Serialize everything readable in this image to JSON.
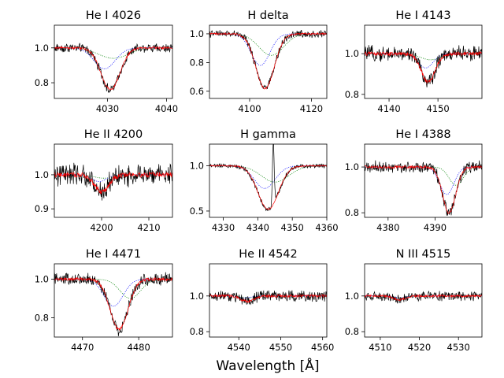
{
  "figure": {
    "xlabel": "Wavelength [Å]",
    "colors": {
      "observed": "#000000",
      "model": "#ff0000",
      "comp1": "#0000ff",
      "comp2": "#008000"
    }
  },
  "chart_data": [
    {
      "type": "line",
      "title": "He I 4026",
      "xlim": [
        4021,
        4041
      ],
      "ylim": [
        0.71,
        1.13
      ],
      "xticks": [
        4030,
        4040
      ],
      "xtick_labels": [
        "4030",
        "4040"
      ],
      "yticks": [
        0.8,
        1.0
      ],
      "ytick_labels": [
        "0.8",
        "1.0"
      ],
      "center": 4030.5,
      "width": 1.6,
      "depth": 0.24,
      "comp1": {
        "center": 4029.5,
        "depth": 0.12,
        "width": 1.8
      },
      "comp2": {
        "center": 4031,
        "depth": 0.06,
        "width": 2.5
      },
      "noise": 0.02
    },
    {
      "type": "line",
      "title": "H delta",
      "xlim": [
        4087,
        4125
      ],
      "ylim": [
        0.55,
        1.06
      ],
      "xticks": [
        4100,
        4120
      ],
      "xtick_labels": [
        "4100",
        "4120"
      ],
      "yticks": [
        0.6,
        0.8,
        1.0
      ],
      "ytick_labels": [
        "0.6",
        "0.8",
        "1.0"
      ],
      "center": 4105,
      "width": 3.0,
      "depth": 0.38,
      "comp1": {
        "center": 4103.5,
        "depth": 0.22,
        "width": 3.0
      },
      "comp2": {
        "center": 4107,
        "depth": 0.15,
        "width": 4.0
      },
      "noise": 0.02
    },
    {
      "type": "line",
      "title": "He I 4143",
      "xlim": [
        4135,
        4159
      ],
      "ylim": [
        0.78,
        1.14
      ],
      "xticks": [
        4140,
        4150
      ],
      "xtick_labels": [
        "4140",
        "4150"
      ],
      "yticks": [
        0.8,
        1.0
      ],
      "ytick_labels": [
        "0.8",
        "1.0"
      ],
      "center": 4148,
      "width": 1.4,
      "depth": 0.14,
      "comp1": {
        "center": 4147.5,
        "depth": 0.07,
        "width": 1.5
      },
      "comp2": {
        "center": 4148.5,
        "depth": 0.03,
        "width": 2.0
      },
      "noise": 0.03
    },
    {
      "type": "line",
      "title": "He II 4200",
      "xlim": [
        4190,
        4215
      ],
      "ylim": [
        0.875,
        1.09
      ],
      "xticks": [
        4200,
        4210
      ],
      "xtick_labels": [
        "4200",
        "4210"
      ],
      "yticks": [
        0.9,
        1.0
      ],
      "ytick_labels": [
        "0.9",
        "1.0"
      ],
      "center": 4200,
      "width": 1.5,
      "depth": 0.05,
      "comp1": {
        "center": 4199.5,
        "depth": 0.02,
        "width": 1.5
      },
      "comp2": {
        "center": 4200.5,
        "depth": 0.01,
        "width": 2.0
      },
      "noise": 0.025
    },
    {
      "type": "line",
      "title": "H gamma",
      "xlim": [
        4326,
        4360
      ],
      "ylim": [
        0.43,
        1.24
      ],
      "xticks": [
        4330,
        4340,
        4350,
        4360
      ],
      "xtick_labels": [
        "4330",
        "4340",
        "4350",
        "4360"
      ],
      "yticks": [
        0.5,
        1.0
      ],
      "ytick_labels": [
        "0.5",
        "1.0"
      ],
      "center": 4343,
      "width": 3.0,
      "depth": 0.48,
      "comp1": {
        "center": 4342,
        "depth": 0.25,
        "width": 3.0
      },
      "comp2": {
        "center": 4345,
        "depth": 0.18,
        "width": 4.0
      },
      "emission": {
        "center": 4344.5,
        "height": 0.7,
        "width": 0.25
      },
      "noise": 0.02
    },
    {
      "type": "line",
      "title": "He I 4388",
      "xlim": [
        4375,
        4400
      ],
      "ylim": [
        0.78,
        1.1
      ],
      "xticks": [
        4380,
        4390
      ],
      "xtick_labels": [
        "4380",
        "4390"
      ],
      "yticks": [
        0.8,
        1.0
      ],
      "ytick_labels": [
        "0.8",
        "1.0"
      ],
      "center": 4393,
      "width": 1.4,
      "depth": 0.2,
      "comp1": {
        "center": 4392.5,
        "depth": 0.12,
        "width": 1.5
      },
      "comp2": {
        "center": 4394.5,
        "depth": 0.08,
        "width": 1.5
      },
      "noise": 0.02
    },
    {
      "type": "line",
      "title": "He I 4471",
      "xlim": [
        4465,
        4486
      ],
      "ylim": [
        0.7,
        1.08
      ],
      "xticks": [
        4470,
        4480
      ],
      "xtick_labels": [
        "4470",
        "4480"
      ],
      "yticks": [
        0.8,
        1.0
      ],
      "ytick_labels": [
        "0.8",
        "1.0"
      ],
      "center": 4476.5,
      "width": 1.6,
      "depth": 0.26,
      "comp1": {
        "center": 4475.5,
        "depth": 0.14,
        "width": 1.7
      },
      "comp2": {
        "center": 4478.5,
        "depth": 0.1,
        "width": 1.8
      },
      "noise": 0.025
    },
    {
      "type": "line",
      "title": "He II 4542",
      "xlim": [
        4533,
        4561
      ],
      "ylim": [
        0.77,
        1.18
      ],
      "xticks": [
        4540,
        4550,
        4560
      ],
      "xtick_labels": [
        "4540",
        "4550",
        "4560"
      ],
      "yticks": [
        0.8,
        1.0
      ],
      "ytick_labels": [
        "0.8",
        "1.0"
      ],
      "center": 4542,
      "width": 1.5,
      "depth": 0.03,
      "comp1": {
        "center": 4541.5,
        "depth": 0.01,
        "width": 1.5
      },
      "comp2": {
        "center": 4542.5,
        "depth": 0.01,
        "width": 1.5
      },
      "noise": 0.025
    },
    {
      "type": "line",
      "title": "N III 4515",
      "xlim": [
        4506,
        4536
      ],
      "ylim": [
        0.77,
        1.18
      ],
      "xticks": [
        4510,
        4520,
        4530
      ],
      "xtick_labels": [
        "4510",
        "4520",
        "4530"
      ],
      "yticks": [
        0.8,
        1.0
      ],
      "ytick_labels": [
        "0.8",
        "1.0"
      ],
      "center": 4515,
      "width": 1.5,
      "depth": 0.02,
      "comp1": {
        "center": 4515,
        "depth": 0.01,
        "width": 1.5
      },
      "comp2": {
        "center": 4515,
        "depth": 0.01,
        "width": 1.5
      },
      "noise": 0.02
    }
  ]
}
